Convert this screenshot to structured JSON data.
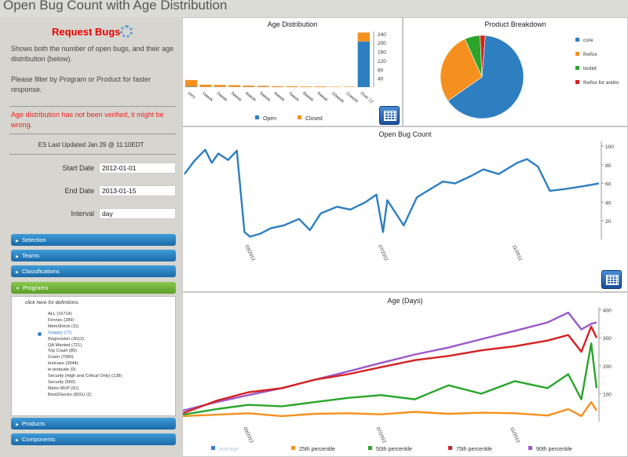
{
  "page_title": "Open Bug Count with Age Distribution",
  "sidebar": {
    "request_button": "Request Bugs",
    "description": "Shows both the number of open bugs, and their age distribution (below).",
    "filter_hint": "Please filter by Program or Product for faster response.",
    "warning": "Age distribution has not been verified, it might be wrong.",
    "last_updated": "ES Last Updated Jan 29 @ 11:10EDT",
    "start_label": "Start Date",
    "start_value": "2012-01-01",
    "end_label": "End Date",
    "end_value": "2013-01-15",
    "interval_label": "Interval",
    "interval_value": "day",
    "sections": [
      "Selection",
      "Teams",
      "Classifications",
      "Programs",
      "Products",
      "Components"
    ],
    "programs_hint": "click here for definitions",
    "programs": [
      "ALL (16714)",
      "Fennec (289)",
      "MemShrink (11)",
      "Snappy (71)",
      "Regression (3612)",
      "QA Wanted (721)",
      "Top Crash (85)",
      "Crash (7090)",
      "testcase (3944)",
      "in-testsuite (0)",
      "Security (High and Critical Only) (138)",
      "Security (660)",
      "Metro MVP (91)",
      "Boot2Gecko (B2G) (2)"
    ],
    "selected_program": "Snappy (71)"
  },
  "colors": {
    "open": "#2e7fc0",
    "closed": "#f5901e",
    "p25": "#f5901e",
    "p50": "#2aa52a",
    "p75": "#d62020",
    "p90": "#9b59c8",
    "accent": "#e00000"
  },
  "chart_data": [
    {
      "type": "bar",
      "title": "Age Distribution",
      "categories": [
        "zero",
        "1week",
        "2week",
        "3week",
        "4week",
        "5week",
        "6week",
        "7week",
        "8week",
        "9week",
        "10week",
        "11week",
        "Over 12"
      ],
      "series": [
        {
          "name": "Open",
          "values": [
            2,
            1,
            1,
            1,
            1,
            1,
            0,
            0,
            0,
            0,
            0,
            0,
            205
          ]
        },
        {
          "name": "Closed",
          "values": [
            30,
            10,
            9,
            8,
            6,
            5,
            4,
            4,
            3,
            3,
            2,
            2,
            40
          ]
        }
      ],
      "y_ticks": [
        "20",
        "40",
        "60",
        "80",
        "100",
        "120",
        "140",
        "160",
        "180",
        "200",
        "220",
        "240"
      ],
      "ylim": [
        0,
        250
      ],
      "stacked": true,
      "legend_position": "bottom"
    },
    {
      "type": "pie",
      "title": "Product Breakdown",
      "labels": [
        "core",
        "firefox",
        "toolkit",
        "firefox for andro"
      ],
      "values": [
        64,
        28,
        6,
        2
      ],
      "colors": [
        "#2e7fc0",
        "#f5901e",
        "#2aa52a",
        "#d62020"
      ],
      "legend_position": "right"
    },
    {
      "type": "line",
      "title": "Open Bug Count",
      "x_ticks": [
        "03/2012",
        "07/2012",
        "11/2012"
      ],
      "y_ticks": [
        "20",
        "40",
        "60",
        "80",
        "100"
      ],
      "ylim": [
        0,
        105
      ],
      "x": [
        "2012-01-01",
        "2012-01-10",
        "2012-01-20",
        "2012-01-26",
        "2012-02-01",
        "2012-02-10",
        "2012-02-18",
        "2012-02-25",
        "2012-03-01",
        "2012-03-10",
        "2012-03-20",
        "2012-04-01",
        "2012-04-15",
        "2012-04-25",
        "2012-05-05",
        "2012-05-20",
        "2012-06-01",
        "2012-06-15",
        "2012-06-25",
        "2012-07-01",
        "2012-07-05",
        "2012-07-20",
        "2012-08-01",
        "2012-08-15",
        "2012-08-25",
        "2012-09-05",
        "2012-09-20",
        "2012-10-01",
        "2012-10-15",
        "2012-11-01",
        "2012-11-10",
        "2012-11-20",
        "2012-12-01",
        "2012-12-15",
        "2013-01-01",
        "2013-01-15"
      ],
      "series": [
        {
          "name": "Open",
          "values": [
            70,
            84,
            96,
            82,
            92,
            85,
            95,
            8,
            3,
            6,
            12,
            15,
            22,
            10,
            28,
            35,
            32,
            40,
            48,
            8,
            42,
            15,
            45,
            55,
            62,
            60,
            68,
            75,
            70,
            82,
            86,
            78,
            52,
            54,
            57,
            60
          ]
        }
      ]
    },
    {
      "type": "line",
      "title": "Age (Days)",
      "x_ticks": [
        "03/2012",
        "07/2012",
        "11/2012"
      ],
      "y_ticks": [
        "100",
        "200",
        "300",
        "400"
      ],
      "ylim": [
        0,
        410
      ],
      "x": [
        "2012-01-01",
        "2012-02-01",
        "2012-03-01",
        "2012-04-01",
        "2012-05-01",
        "2012-06-01",
        "2012-07-01",
        "2012-08-01",
        "2012-09-01",
        "2012-10-01",
        "2012-11-01",
        "2012-12-01",
        "2012-12-20",
        "2013-01-01",
        "2013-01-10",
        "2013-01-15"
      ],
      "series": [
        {
          "name": "average",
          "values": [
            20,
            30,
            40,
            55,
            70,
            90,
            110,
            130,
            150,
            175,
            195,
            210,
            220,
            215,
            225,
            230
          ]
        },
        {
          "name": "25th percentile",
          "values": [
            20,
            25,
            30,
            20,
            28,
            30,
            26,
            35,
            28,
            32,
            30,
            22,
            45,
            20,
            70,
            40
          ]
        },
        {
          "name": "50th percentile",
          "values": [
            25,
            45,
            60,
            55,
            70,
            85,
            95,
            80,
            130,
            100,
            145,
            120,
            170,
            80,
            280,
            120
          ]
        },
        {
          "name": "75th percentile",
          "values": [
            30,
            75,
            105,
            120,
            150,
            170,
            195,
            220,
            235,
            255,
            270,
            290,
            310,
            250,
            340,
            300
          ]
        },
        {
          "name": "90th percentile",
          "values": [
            40,
            70,
            95,
            120,
            150,
            180,
            210,
            240,
            265,
            295,
            325,
            355,
            390,
            330,
            350,
            355
          ]
        }
      ],
      "legend_position": "bottom"
    }
  ]
}
